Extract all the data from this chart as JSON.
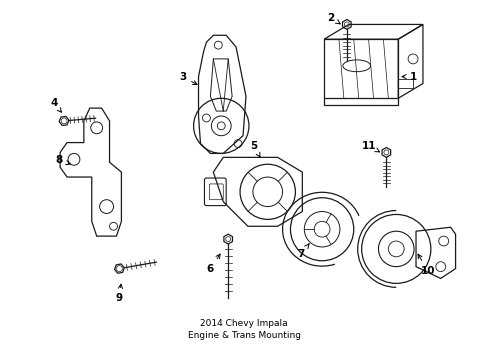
{
  "title": "2014 Chevy Impala\nEngine & Trans Mounting",
  "background_color": "#ffffff",
  "line_color": "#1a1a1a",
  "fig_width": 4.89,
  "fig_height": 3.6,
  "dpi": 100
}
